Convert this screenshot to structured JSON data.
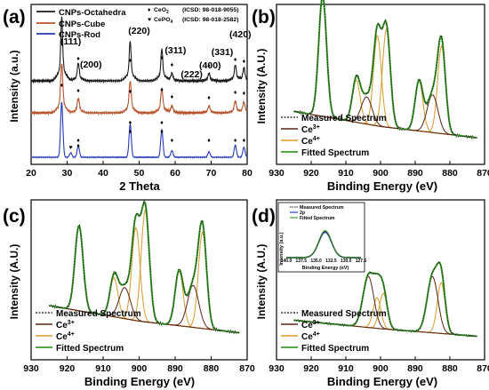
{
  "chart_data": [
    {
      "panel": "(a)",
      "type": "line",
      "xlabel": "2 Theta",
      "ylabel": "Intensity (a.u.)",
      "xlim": [
        20,
        80
      ],
      "xticks": [
        20,
        30,
        40,
        50,
        60,
        70,
        80
      ],
      "grid": false,
      "legend_position": "top-left",
      "series": [
        {
          "name": "CNPs-Octahedra",
          "color": "#1a1a1a",
          "offset": 0.78,
          "x": [
            28.5,
            33.1,
            47.5,
            56.3,
            59.1,
            69.4,
            76.7,
            79.1
          ],
          "y": [
            1.0,
            0.28,
            0.62,
            0.5,
            0.12,
            0.12,
            0.25,
            0.2
          ]
        },
        {
          "name": "CNPs-Cube",
          "color": "#b5532a",
          "offset": 0.42,
          "x": [
            28.5,
            33.1,
            47.5,
            56.3,
            59.1,
            69.4,
            76.7,
            79.1
          ],
          "y": [
            0.85,
            0.25,
            0.55,
            0.42,
            0.12,
            0.12,
            0.2,
            0.18
          ]
        },
        {
          "name": "CNPs-Rod",
          "color": "#2438b8",
          "offset": 0.0,
          "x": [
            28.5,
            31.0,
            33.1,
            47.5,
            56.3,
            59.1,
            69.4,
            76.7,
            79.1
          ],
          "y": [
            1.0,
            0.08,
            0.2,
            0.6,
            0.5,
            0.12,
            0.1,
            0.22,
            0.18
          ]
        }
      ],
      "peak_labels": [
        "(111)",
        "(200)",
        "(220)",
        "(311)",
        "(222)",
        "(400)",
        "(331)",
        "(420)"
      ],
      "reference_legend": [
        {
          "symbol": "♦",
          "compound": "CeO",
          "sub": "2",
          "note": "(ICSD: 98-018-9055)"
        },
        {
          "symbol": "♥",
          "compound": "CePO",
          "sub": "4",
          "note": "(ICSD: 98-018-2582)"
        }
      ]
    },
    {
      "panel": "(b)",
      "type": "line",
      "xlabel": "Binding Energy (eV)",
      "ylabel": "Intensity (A.U.)",
      "xlim": [
        930,
        870
      ],
      "xticks": [
        930,
        920,
        910,
        900,
        890,
        880,
        870
      ],
      "legend_position": "bottom-left",
      "legend": [
        "Measured Spectrum",
        "Ce",
        "Ce",
        "Fitted Spectrum"
      ],
      "legend_sup": [
        "",
        "3+",
        "4+",
        ""
      ],
      "colors": {
        "measured": "#111111",
        "ce3": "#5a2415",
        "ce4": "#d79a2d",
        "fitted": "#3d9a2c",
        "background": "#8a8a8a"
      },
      "background_line": {
        "x": [
          930,
          900,
          870
        ],
        "y": [
          0.3,
          0.18,
          0.1
        ]
      },
      "components": {
        "ce3": [
          [
            904,
            0.18
          ],
          [
            885,
            0.25
          ]
        ],
        "ce4": [
          [
            916.7,
            0.8
          ],
          [
            907,
            0.28
          ],
          [
            900.9,
            0.6
          ],
          [
            898.3,
            0.65
          ],
          [
            888.9,
            0.33
          ],
          [
            882.4,
            0.58
          ]
        ]
      }
    },
    {
      "panel": "(c)",
      "type": "line",
      "xlabel": "Binding Energy (eV)",
      "ylabel": "Intensity (A.U.)",
      "xlim": [
        930,
        870
      ],
      "xticks": [
        930,
        920,
        910,
        900,
        890,
        880,
        870
      ],
      "legend_position": "bottom-left",
      "legend": [
        "Measured Spectrum",
        "Ce",
        "Ce",
        "Fitted Spectrum"
      ],
      "legend_sup": [
        "",
        "3+",
        "4+",
        ""
      ],
      "colors": {
        "measured": "#111111",
        "ce3": "#5a2415",
        "ce4": "#d79a2d",
        "fitted": "#3d9a2c",
        "background": "#8a8a8a"
      },
      "background_line": {
        "x": [
          930,
          900,
          870
        ],
        "y": [
          0.3,
          0.18,
          0.1
        ]
      },
      "components": {
        "ce3": [
          [
            904,
            0.2
          ],
          [
            885,
            0.27
          ]
        ],
        "ce4": [
          [
            916.7,
            0.55
          ],
          [
            907,
            0.25
          ],
          [
            900.9,
            0.6
          ],
          [
            898.3,
            0.72
          ],
          [
            888.9,
            0.35
          ],
          [
            882.4,
            0.62
          ]
        ]
      }
    },
    {
      "panel": "(d)",
      "type": "line",
      "xlabel": "Binding Energy (eV)",
      "ylabel": "Intensity (A.U.)",
      "xlim": [
        930,
        870
      ],
      "xticks": [
        930,
        920,
        910,
        900,
        890,
        880,
        870
      ],
      "legend_position": "bottom-left",
      "legend": [
        "Measured Spectrum",
        "Ce",
        "Ce",
        "Fitted Spectrum"
      ],
      "legend_sup": [
        "",
        "3+",
        "4+",
        ""
      ],
      "colors": {
        "measured": "#111111",
        "ce3": "#5a2415",
        "ce4": "#d79a2d",
        "fitted": "#3d9a2c",
        "background": "#8a8a8a"
      },
      "background_line": {
        "x": [
          930,
          900,
          870
        ],
        "y": [
          0.3,
          0.2,
          0.12
        ]
      },
      "components": {
        "ce3": [
          [
            903.5,
            0.5
          ],
          [
            885,
            0.55
          ]
        ],
        "ce4": [
          [
            901,
            0.3
          ],
          [
            899.2,
            0.35
          ],
          [
            882.5,
            0.5
          ]
        ]
      },
      "inset": {
        "xlabel": "Binding Energy (eV)",
        "ylabel": "Intensity (a.u.)",
        "xlim": [
          140.0,
          127.5
        ],
        "xticks": [
          "140.0",
          "137.5",
          "135.0",
          "132.5",
          "130.0",
          "127.5"
        ],
        "legend": [
          "Measured Spectrum",
          "2p",
          "Fitted Spectrum"
        ],
        "peak_center": 133.5,
        "peak_height": 1.0
      }
    }
  ]
}
